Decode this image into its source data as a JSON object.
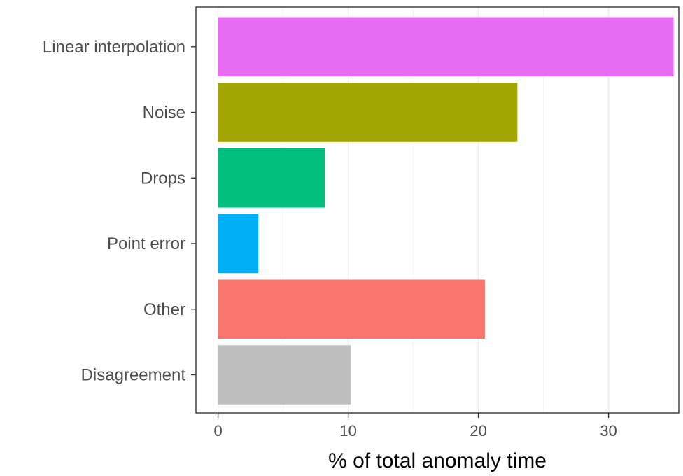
{
  "chart_data": {
    "type": "bar",
    "orientation": "horizontal",
    "title": "",
    "xlabel": "% of total anomaly time",
    "ylabel": "",
    "xlim": [
      -1.7,
      35.4
    ],
    "x_ticks": [
      0,
      10,
      20,
      30
    ],
    "x_tick_labels": [
      "0",
      "10",
      "20",
      "30"
    ],
    "grid": true,
    "legend": "none",
    "categories": [
      "Linear interpolation",
      "Noise",
      "Drops",
      "Point error",
      "Other",
      "Disagreement"
    ],
    "values": [
      35.0,
      23.0,
      8.2,
      3.1,
      20.5,
      10.2
    ],
    "colors": [
      "#e76bf3",
      "#a3a500",
      "#00bf7d",
      "#00b0f6",
      "#f8766d",
      "#bebebe"
    ]
  }
}
